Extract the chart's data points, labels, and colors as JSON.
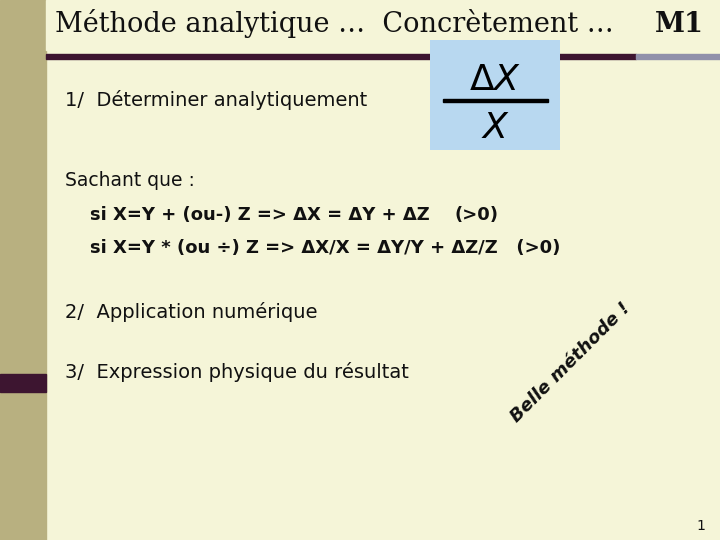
{
  "bg_color": "#f5f5d8",
  "left_bar_color": "#b8b080",
  "left_bar_dark": "#3d1530",
  "right_bar_color": "#8888aa",
  "fraction_box_color": "#b8d8f0",
  "dark_text": "#111111",
  "title_normal": "Méthode analytique …  Conc rètement …",
  "title_bold": "M1",
  "page_number": "1"
}
